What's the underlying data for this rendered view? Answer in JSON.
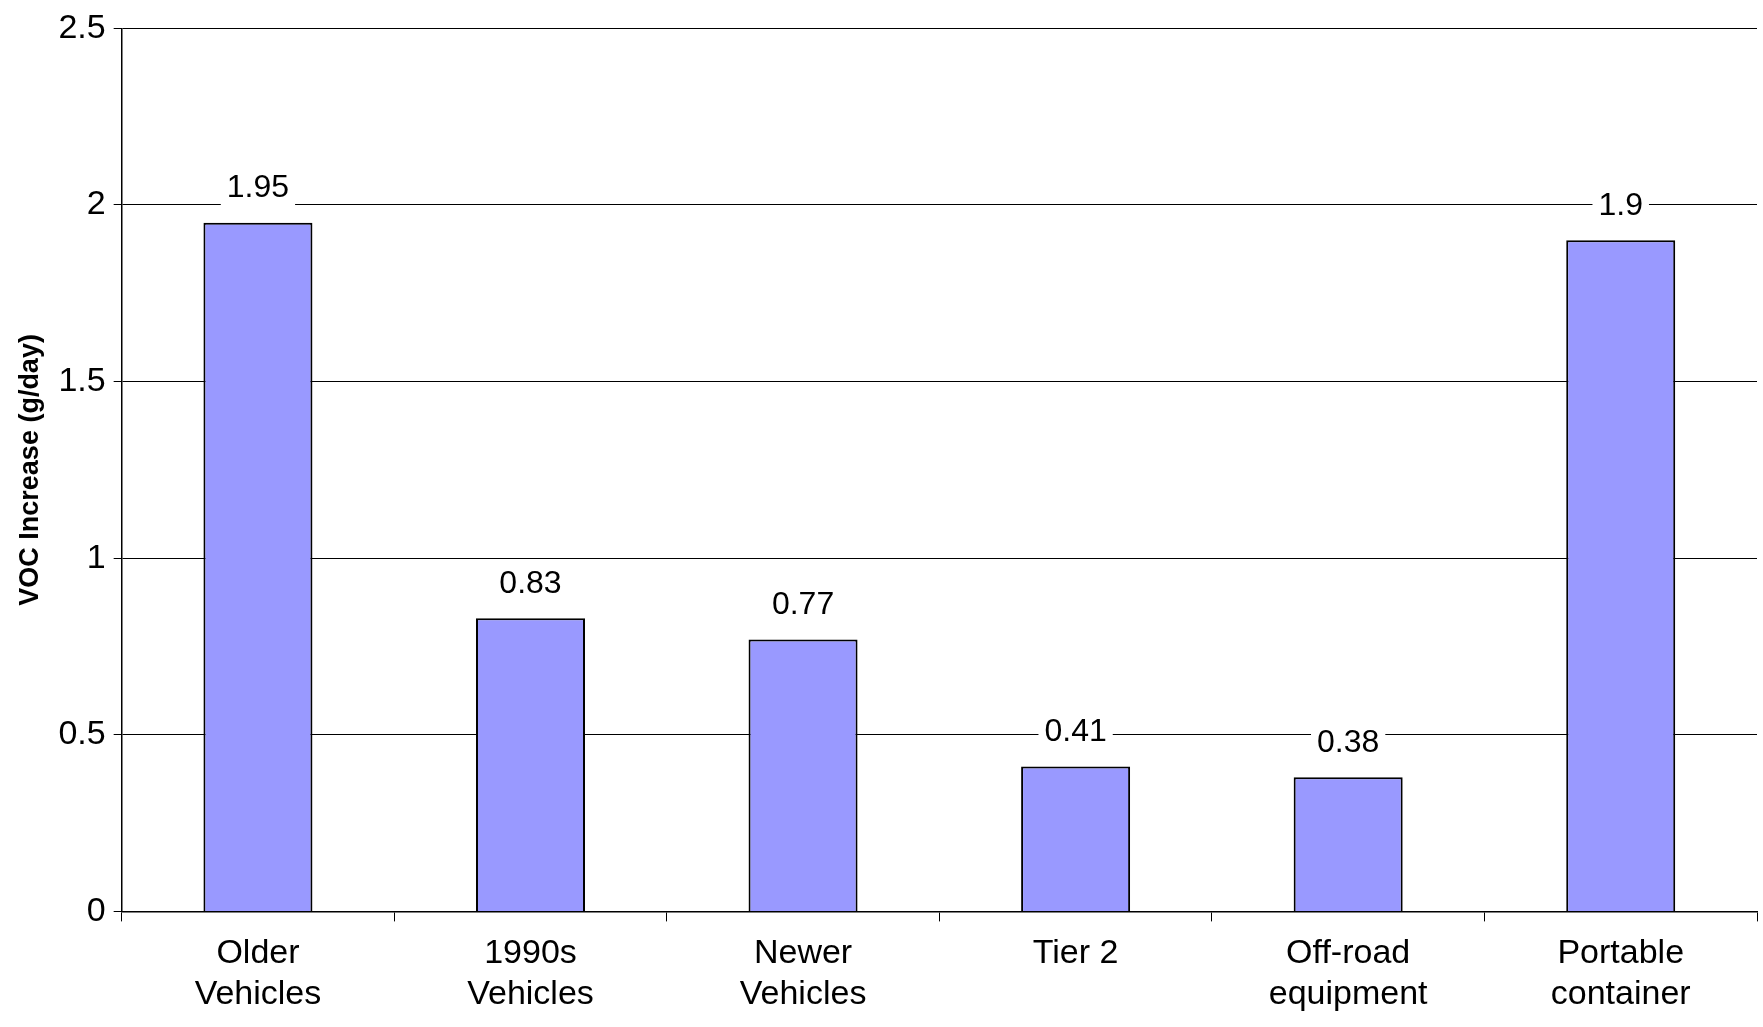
{
  "chart_data": {
    "type": "bar",
    "ylabel": "VOC Increase (g/day)",
    "categories": [
      "Older Vehicles",
      "1990s Vehicles",
      "Newer Vehicles",
      "Tier 2",
      "Off-road equipment",
      "Portable container"
    ],
    "values": [
      1.95,
      0.83,
      0.77,
      0.41,
      0.38,
      1.9
    ],
    "color": "#9999ff",
    "ylim": [
      0,
      2.5
    ],
    "yticks": [
      0,
      0.5,
      1,
      1.5,
      2,
      2.5
    ],
    "grid": "y",
    "data_labels": true,
    "legend": false
  }
}
